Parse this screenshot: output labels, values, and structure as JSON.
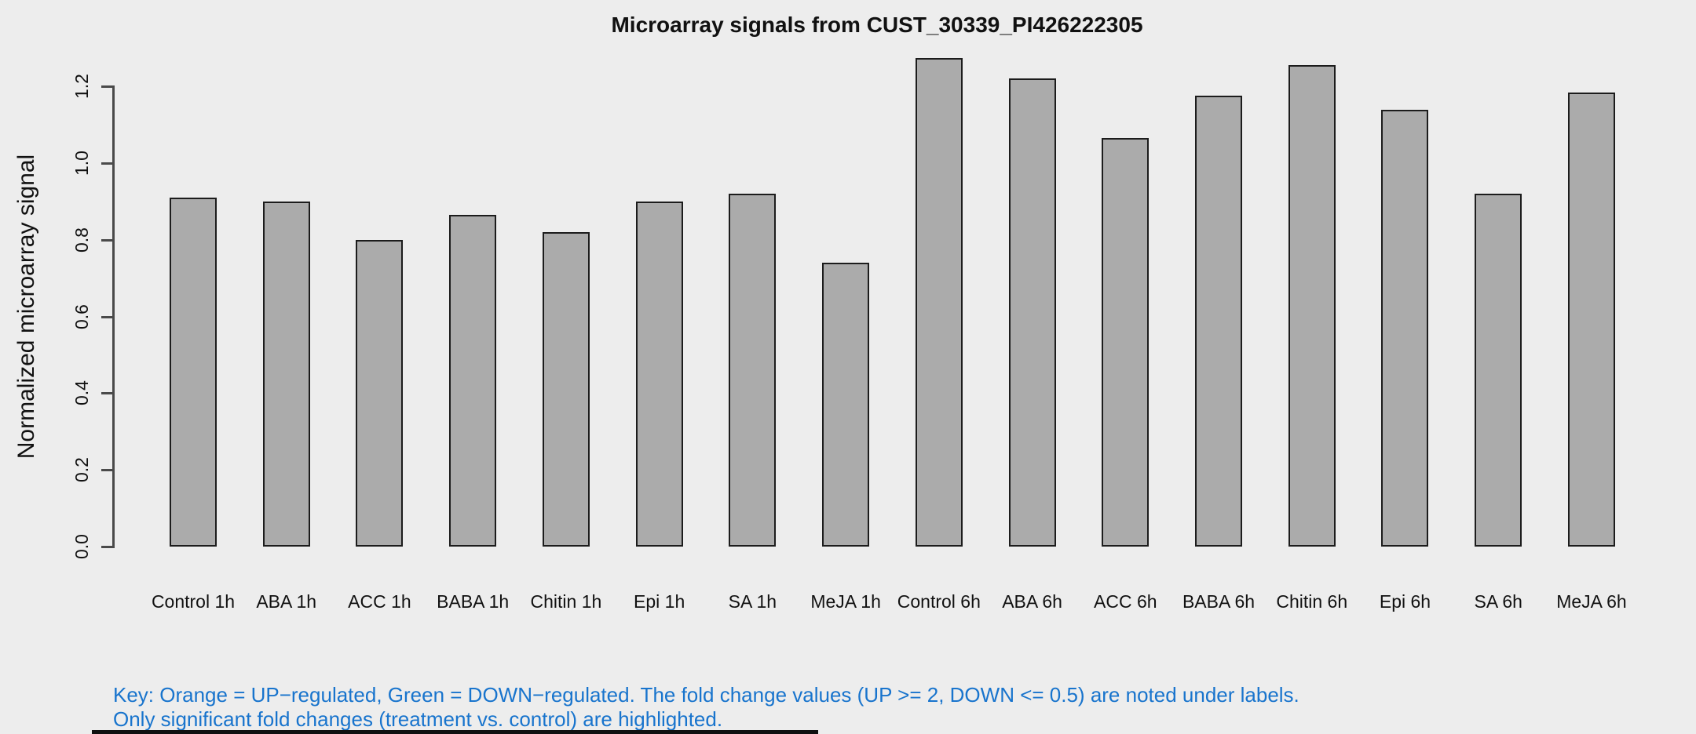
{
  "title": "Microarray signals from CUST_30339_PI426222305",
  "ylabel": "Normalized microarray signal",
  "key": {
    "line1": "Key: Orange = UP−regulated, Green = DOWN−regulated. The fold change values (UP >= 2, DOWN <= 0.5) are noted under labels.",
    "line2": "Only significant fold changes (treatment vs. control) are highlighted."
  },
  "colors": {
    "background": "#EDEDED",
    "bar_fill": "#ABABAB",
    "bar_border": "#1c1c1c",
    "axis": "#4a4a4a",
    "text": "#111111",
    "key_text": "#1874CD",
    "up_regulated": "orange",
    "down_regulated": "green"
  },
  "chart_data": {
    "type": "bar",
    "title": "Microarray signals from CUST_30339_PI426222305",
    "xlabel": "",
    "ylabel": "Normalized microarray signal",
    "categories": [
      "Control 1h",
      "ABA 1h",
      "ACC 1h",
      "BABA 1h",
      "Chitin 1h",
      "Epi 1h",
      "SA 1h",
      "MeJA 1h",
      "Control 6h",
      "ABA 6h",
      "ACC 6h",
      "BABA 6h",
      "Chitin 6h",
      "Epi 6h",
      "SA 6h",
      "MeJA 6h"
    ],
    "values": [
      0.91,
      0.9,
      0.8,
      0.865,
      0.82,
      0.9,
      0.92,
      0.74,
      1.275,
      1.22,
      1.065,
      1.175,
      1.255,
      1.14,
      0.92,
      1.185
    ],
    "ylim": [
      0.0,
      1.2
    ],
    "yticks": [
      0.0,
      0.2,
      0.4,
      0.6,
      0.8,
      1.0,
      1.2
    ],
    "grid": false,
    "legend_position": "none",
    "bar_single_series": true
  }
}
